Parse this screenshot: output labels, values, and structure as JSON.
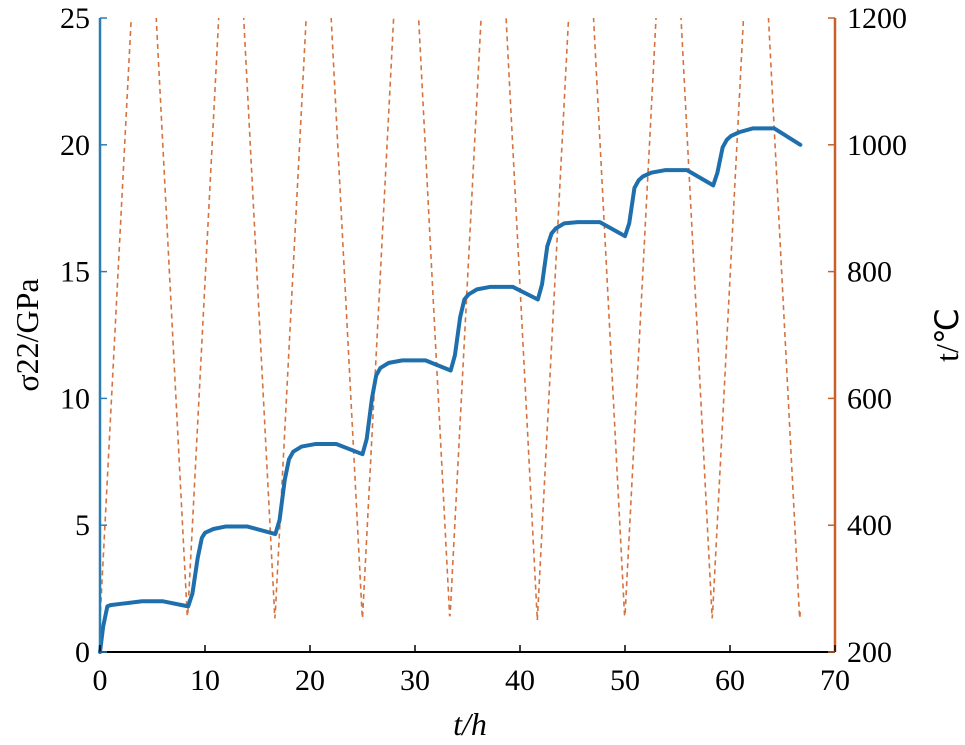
{
  "chart_data": {
    "type": "line",
    "xlabel": "t/h",
    "ylabel": "σ22/GPa",
    "y2label": "t/℃",
    "xlim": [
      0,
      70
    ],
    "ylim": [
      0,
      25
    ],
    "y2lim": [
      200,
      1200
    ],
    "x_ticks": [
      "0",
      "10",
      "20",
      "30",
      "40",
      "50",
      "60",
      "70"
    ],
    "y_ticks": [
      "0",
      "5",
      "10",
      "15",
      "20",
      "25"
    ],
    "y2_ticks": [
      "200",
      "400",
      "600",
      "800",
      "1000",
      "1200"
    ],
    "grid": false,
    "legend": "none",
    "colors": {
      "stress": "#1f6fad",
      "temperature": "#d4733f",
      "left_axis": "#2a7db5",
      "right_axis": "#c8602a"
    },
    "series": [
      {
        "axis": "left",
        "style": "solid",
        "x": [
          0,
          0.3,
          0.7,
          1.0,
          2.0,
          4.0,
          6.0,
          8.4,
          8.8,
          9.3,
          9.7,
          10.0,
          10.8,
          12.0,
          14.0,
          16.7,
          17.1,
          17.6,
          18.0,
          18.4,
          19.2,
          20.5,
          22.5,
          25.0,
          25.4,
          25.9,
          26.3,
          26.7,
          27.5,
          28.8,
          31.0,
          33.4,
          33.8,
          34.3,
          34.7,
          35.1,
          35.9,
          37.2,
          39.3,
          41.7,
          42.1,
          42.6,
          43.0,
          43.4,
          44.2,
          45.5,
          47.6,
          50.0,
          50.4,
          50.9,
          51.3,
          51.7,
          52.5,
          53.8,
          55.9,
          58.4,
          58.8,
          59.3,
          59.7,
          60.1,
          60.9,
          62.2,
          64.2,
          66.7
        ],
        "y": [
          0.0,
          1.0,
          1.8,
          1.85,
          1.9,
          2.0,
          2.0,
          1.8,
          2.3,
          3.7,
          4.5,
          4.7,
          4.85,
          4.95,
          4.95,
          4.65,
          5.2,
          6.8,
          7.6,
          7.9,
          8.1,
          8.2,
          8.2,
          7.8,
          8.4,
          10.0,
          10.9,
          11.2,
          11.4,
          11.5,
          11.5,
          11.1,
          11.7,
          13.2,
          13.9,
          14.1,
          14.3,
          14.4,
          14.4,
          13.9,
          14.5,
          16.0,
          16.5,
          16.7,
          16.9,
          16.95,
          16.95,
          16.4,
          16.9,
          18.3,
          18.6,
          18.75,
          18.9,
          19.0,
          19.0,
          18.4,
          18.9,
          19.9,
          20.2,
          20.35,
          20.5,
          20.65,
          20.65,
          20.0
        ]
      },
      {
        "axis": "right",
        "style": "dashed",
        "cycle_hours": 8.33,
        "temperature_range": [
          250,
          1200
        ],
        "x_end": 66.7
      }
    ]
  }
}
